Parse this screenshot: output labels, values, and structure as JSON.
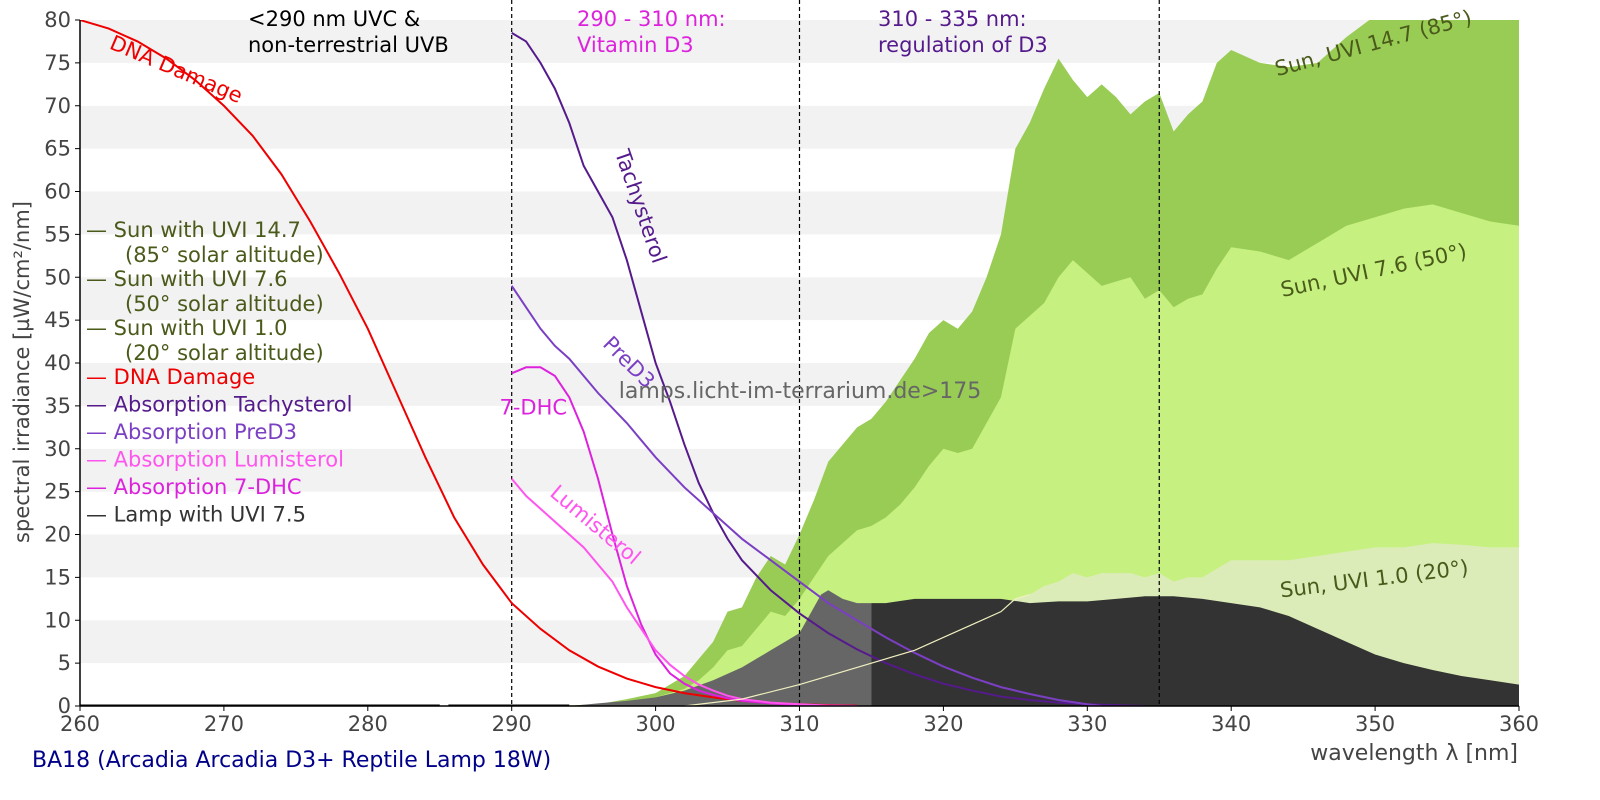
{
  "caption": "BA18 (Arcadia Arcadia D3+ Reptile Lamp 18W)",
  "watermark": "lamps.licht-im-terrarium.de>175",
  "colors": {
    "sun_high": "#99cc55",
    "sun_mid": "#c6f080",
    "sun_low": "#dcecb8",
    "lamp": "#333333",
    "lamp_below_315": "#666666",
    "dna": "#ee0000",
    "tachysterol": "#551a8b",
    "pred3": "#7b3fc4",
    "lumisterol": "#ff55ee",
    "dhc7": "#dd22dd",
    "legend_sun": "#4a5a1a",
    "region_uvc": "#000000",
    "region_d3": "#dd22dd",
    "region_reg": "#551a8b",
    "caption": "#000088"
  },
  "regions": {
    "uvc": [
      "<290 nm UVC &",
      "non-terrestrial UVB"
    ],
    "d3": [
      "290 - 310 nm:",
      "Vitamin D3"
    ],
    "reg": [
      "310 - 335 nm:",
      "regulation of D3"
    ]
  },
  "legend": [
    {
      "label": "— Sun with UVI 14.7",
      "sub": "(85° solar altitude)",
      "key": "legend_sun"
    },
    {
      "label": "— Sun with UVI 7.6",
      "sub": "(50° solar altitude)",
      "key": "legend_sun"
    },
    {
      "label": "— Sun with UVI 1.0",
      "sub": "(20° solar altitude)",
      "key": "legend_sun"
    },
    {
      "label": "— DNA Damage",
      "key": "dna"
    },
    {
      "label": "— Absorption Tachysterol",
      "key": "tachysterol"
    },
    {
      "label": "— Absorption PreD3",
      "key": "pred3"
    },
    {
      "label": "— Absorption Lumisterol",
      "key": "lumisterol"
    },
    {
      "label": "— Absorption 7-DHC",
      "key": "dhc7"
    },
    {
      "label": "— Lamp with UVI 7.5",
      "key": "lamp"
    }
  ],
  "chart_data": {
    "type": "area",
    "xlabel": "wavelength λ [nm]",
    "ylabel": "spectral irradiance [µW/cm²/nm]",
    "xlim": [
      260,
      360
    ],
    "ylim": [
      0,
      80
    ],
    "xticks": [
      260,
      270,
      280,
      290,
      300,
      310,
      320,
      330,
      340,
      350,
      360
    ],
    "yticks": [
      0,
      5,
      10,
      15,
      20,
      25,
      30,
      35,
      40,
      45,
      50,
      55,
      60,
      65,
      70,
      75,
      80
    ],
    "grid": "horizontal bands",
    "vlines": [
      290,
      310,
      335
    ],
    "series": [
      {
        "name": "Sun with UVI 14.7",
        "kind": "area",
        "color_key": "sun_high",
        "x": [
          293,
          296,
          298,
          300,
          302,
          303,
          304,
          305,
          306,
          307,
          308,
          309,
          310,
          311,
          312,
          313,
          314,
          315,
          316,
          317,
          318,
          319,
          320,
          321,
          322,
          323,
          324,
          325,
          326,
          327,
          328,
          329,
          330,
          331,
          332,
          333,
          334,
          335,
          336,
          337,
          338,
          339,
          340,
          342,
          344,
          346,
          348,
          350,
          352,
          354,
          356,
          358,
          360
        ],
        "y": [
          0,
          0.2,
          0.8,
          1.5,
          3.5,
          5.5,
          7.5,
          11.0,
          11.5,
          15.0,
          17.5,
          16.5,
          20.0,
          24.0,
          28.5,
          30.5,
          32.5,
          33.5,
          35.5,
          38.0,
          40.5,
          43.5,
          45.0,
          44.0,
          46.0,
          50.0,
          55.0,
          65.0,
          68.0,
          72.0,
          75.5,
          73.0,
          71.0,
          72.5,
          71.0,
          69.0,
          70.5,
          71.5,
          67.0,
          69.0,
          70.5,
          75.0,
          76.5,
          75.0,
          74.5,
          75.0,
          78.0,
          80.5,
          82.0,
          84.0,
          84.5,
          82.0,
          80.0
        ]
      },
      {
        "name": "Sun with UVI 7.6",
        "kind": "area",
        "color_key": "sun_mid",
        "x": [
          296,
          298,
          300,
          302,
          303,
          304,
          305,
          306,
          307,
          308,
          309,
          310,
          311,
          312,
          313,
          314,
          315,
          316,
          317,
          318,
          319,
          320,
          321,
          322,
          323,
          324,
          325,
          326,
          327,
          328,
          329,
          330,
          331,
          332,
          333,
          334,
          335,
          336,
          337,
          338,
          339,
          340,
          342,
          344,
          346,
          348,
          350,
          352,
          354,
          356,
          358,
          360
        ],
        "y": [
          0,
          0.5,
          1.0,
          2.0,
          3.0,
          4.5,
          6.5,
          7.0,
          9.0,
          11.0,
          10.5,
          12.5,
          15.0,
          17.5,
          19.0,
          20.5,
          21.0,
          22.0,
          23.5,
          25.5,
          28.0,
          30.0,
          29.5,
          30.0,
          33.0,
          36.0,
          44.0,
          45.5,
          47.0,
          50.0,
          52.0,
          50.5,
          49.0,
          49.5,
          50.0,
          47.5,
          48.5,
          46.5,
          47.5,
          48.0,
          51.0,
          53.5,
          53.0,
          52.0,
          54.0,
          56.0,
          57.0,
          58.0,
          58.5,
          57.5,
          56.5,
          56.0
        ]
      },
      {
        "name": "Sun with UVI 1.0",
        "kind": "area",
        "color_key": "sun_low",
        "x": [
          302,
          306,
          310,
          314,
          318,
          322,
          324,
          325,
          326,
          327,
          328,
          329,
          330,
          331,
          332,
          333,
          334,
          335,
          336,
          337,
          338,
          339,
          340,
          342,
          344,
          346,
          348,
          350,
          352,
          354,
          356,
          358,
          360
        ],
        "y": [
          0,
          0.8,
          2.5,
          4.5,
          6.5,
          9.5,
          11.0,
          12.5,
          13.0,
          14.0,
          14.5,
          15.5,
          15.0,
          15.5,
          15.5,
          15.5,
          15.0,
          15.5,
          14.5,
          15.0,
          15.0,
          16.0,
          17.0,
          17.0,
          17.0,
          17.5,
          18.0,
          18.5,
          18.5,
          19.0,
          18.8,
          18.5,
          18.5
        ]
      },
      {
        "name": "Lamp with UVI 7.5",
        "kind": "area",
        "color_key": "lamp",
        "x": [
          294,
          296,
          298,
          300,
          302,
          304,
          306,
          308,
          309,
          310,
          311,
          311.5,
          312,
          313,
          314,
          315,
          316,
          318,
          320,
          322,
          324,
          326,
          328,
          330,
          332,
          334,
          336,
          338,
          340,
          342,
          344,
          346,
          348,
          350,
          352,
          354,
          356,
          358,
          360
        ],
        "y": [
          0,
          0.3,
          0.6,
          1.0,
          1.8,
          3.0,
          4.5,
          6.5,
          7.5,
          8.5,
          11.5,
          13.0,
          13.5,
          12.5,
          12.0,
          12.0,
          12.0,
          12.5,
          12.5,
          12.5,
          12.5,
          12.0,
          12.2,
          12.2,
          12.5,
          12.8,
          12.8,
          12.5,
          12.0,
          11.5,
          10.5,
          9.0,
          7.5,
          6.0,
          5.0,
          4.2,
          3.5,
          3.0,
          2.5
        ]
      },
      {
        "name": "DNA Damage",
        "kind": "line",
        "color_key": "dna",
        "x": [
          260,
          262,
          264,
          266,
          268,
          270,
          272,
          274,
          276,
          278,
          280,
          282,
          284,
          286,
          288,
          290,
          292,
          294,
          296,
          298,
          300,
          302,
          304,
          306,
          308,
          310,
          312,
          314
        ],
        "y": [
          80.0,
          79.0,
          77.5,
          75.5,
          73.0,
          70.0,
          66.5,
          62.0,
          56.5,
          50.5,
          44.0,
          36.5,
          29.0,
          22.0,
          16.5,
          12.0,
          9.0,
          6.5,
          4.6,
          3.2,
          2.2,
          1.5,
          1.0,
          0.6,
          0.35,
          0.2,
          0.1,
          0.05
        ]
      },
      {
        "name": "Absorption Tachysterol",
        "kind": "line",
        "color_key": "tachysterol",
        "x": [
          290,
          291,
          292,
          293,
          294,
          295,
          296,
          297,
          298,
          299,
          300,
          301,
          302,
          303,
          304,
          305,
          306,
          308,
          310,
          312,
          314,
          316,
          318,
          320,
          322,
          324,
          326,
          328,
          330,
          332,
          334
        ],
        "y": [
          78.5,
          77.5,
          75.0,
          72.0,
          68.0,
          63.0,
          60.0,
          57.0,
          52.0,
          46.0,
          40.0,
          35.5,
          30.5,
          26.0,
          22.5,
          19.5,
          17.0,
          13.5,
          10.8,
          8.5,
          6.6,
          5.0,
          3.7,
          2.6,
          1.8,
          1.1,
          0.7,
          0.4,
          0.2,
          0.1,
          0
        ]
      },
      {
        "name": "Absorption PreD3",
        "kind": "line",
        "color_key": "pred3",
        "x": [
          290,
          291,
          292,
          293,
          294,
          295,
          296,
          298,
          300,
          302,
          304,
          306,
          308,
          310,
          312,
          314,
          316,
          318,
          320,
          322,
          324,
          326,
          328,
          330,
          331
        ],
        "y": [
          49.0,
          46.5,
          44.0,
          42.0,
          40.5,
          38.5,
          36.5,
          33.0,
          29.0,
          25.5,
          22.5,
          19.5,
          17.0,
          14.5,
          12.0,
          10.0,
          8.0,
          6.2,
          4.6,
          3.3,
          2.2,
          1.4,
          0.7,
          0.2,
          0
        ]
      },
      {
        "name": "Absorption 7-DHC",
        "kind": "line",
        "color_key": "dhc7",
        "x": [
          290,
          291,
          292,
          293,
          294,
          295,
          296,
          297,
          298,
          299,
          300,
          301,
          302,
          303,
          304,
          305,
          306,
          308,
          310,
          312,
          314
        ],
        "y": [
          38.8,
          39.5,
          39.5,
          38.5,
          36.0,
          32.0,
          26.5,
          20.0,
          14.0,
          9.5,
          6.0,
          3.8,
          2.6,
          1.8,
          1.3,
          0.9,
          0.6,
          0.3,
          0.1,
          0.05,
          0
        ]
      },
      {
        "name": "Absorption Lumisterol",
        "kind": "line",
        "color_key": "lumisterol",
        "x": [
          290,
          291,
          292,
          293,
          294,
          295,
          296,
          297,
          298,
          299,
          300,
          301,
          302,
          303,
          304,
          305,
          306,
          308,
          310,
          312,
          314
        ],
        "y": [
          26.5,
          24.5,
          23.0,
          21.5,
          20.0,
          18.5,
          16.5,
          14.5,
          11.5,
          9.0,
          6.5,
          4.8,
          3.5,
          2.5,
          1.8,
          1.2,
          0.8,
          0.4,
          0.2,
          0.05,
          0
        ]
      },
      {
        "name": "Sun with UVI 1.0",
        "kind": "line",
        "color_key": "sun_low",
        "x": [
          302,
          306,
          310,
          314,
          318,
          322,
          324,
          325,
          326
        ],
        "y": [
          0,
          0.8,
          2.5,
          4.5,
          6.5,
          9.5,
          11.0,
          12.5,
          13.0
        ]
      }
    ],
    "curve_labels": [
      {
        "text": "DNA Damage",
        "color_key": "dna",
        "x": 266.5,
        "y": 73.5,
        "angle": 23
      },
      {
        "text": "Tachysterol",
        "color_key": "tachysterol",
        "x": 298.5,
        "y": 58.0,
        "angle": 71
      },
      {
        "text": "PreD3",
        "color_key": "pred3",
        "x": 297.8,
        "y": 39.5,
        "angle": 45
      },
      {
        "text": "7-DHC",
        "color_key": "dhc7",
        "x": 291.5,
        "y": 34.0,
        "angle": 0
      },
      {
        "text": "Lumisterol",
        "color_key": "lumisterol",
        "x": 295.5,
        "y": 20.5,
        "angle": 40
      },
      {
        "text": "Sun, UVI 14.7 (85°)",
        "color_key": "legend_sun",
        "x": 350.0,
        "y": 76.5,
        "angle": -15
      },
      {
        "text": "Sun, UVI 7.6 (50°)",
        "color_key": "legend_sun",
        "x": 350.0,
        "y": 50.0,
        "angle": -12
      },
      {
        "text": "Sun, UVI 1.0 (20°)",
        "color_key": "legend_sun",
        "x": 350.0,
        "y": 14.0,
        "angle": -7
      }
    ]
  }
}
